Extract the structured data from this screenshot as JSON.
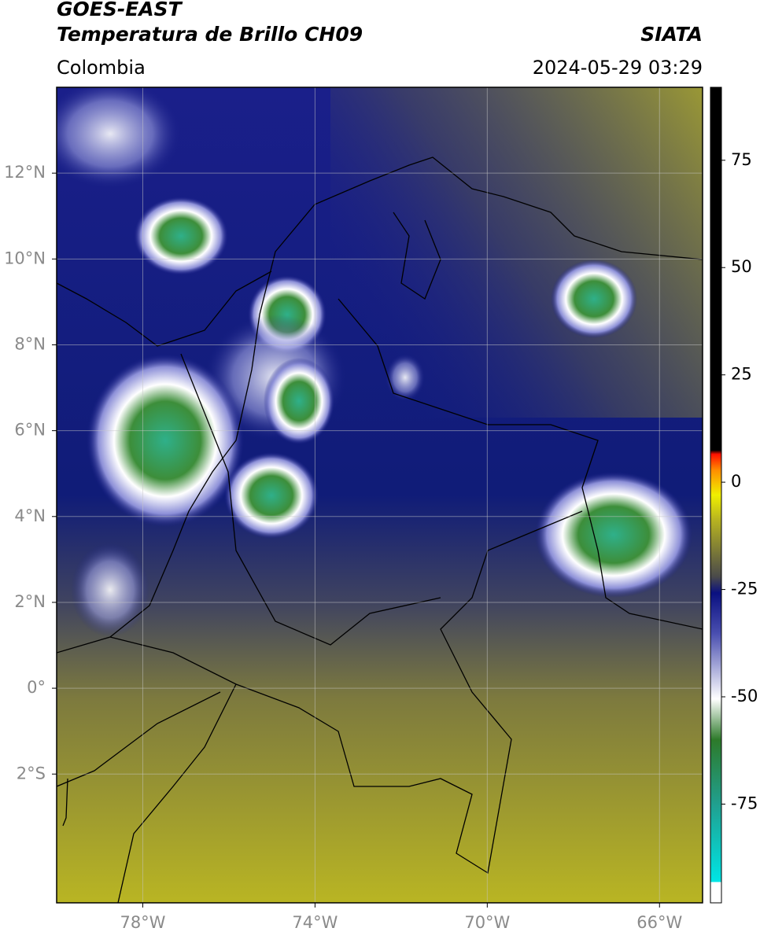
{
  "header": {
    "satellite": "GOES-EAST",
    "product": "Temperatura de Brillo CH09",
    "agency": "SIATA",
    "region": "Colombia",
    "datetime": "2024-05-29 03:29"
  },
  "map": {
    "xlim": [
      -80,
      -65
    ],
    "ylim": [
      -5,
      14
    ],
    "xticks": [
      {
        "value": -78,
        "label": "78°W"
      },
      {
        "value": -74,
        "label": "74°W"
      },
      {
        "value": -70,
        "label": "70°W"
      },
      {
        "value": -66,
        "label": "66°W"
      }
    ],
    "yticks": [
      {
        "value": 12,
        "label": "12°N"
      },
      {
        "value": 10,
        "label": "10°N"
      },
      {
        "value": 8,
        "label": "8°N"
      },
      {
        "value": 6,
        "label": "6°N"
      },
      {
        "value": 4,
        "label": "4°N"
      },
      {
        "value": 2,
        "label": "2°N"
      },
      {
        "value": 0,
        "label": "0°"
      },
      {
        "value": -2,
        "label": "2°S"
      }
    ]
  },
  "colorbar": {
    "lim": [
      -98,
      92
    ],
    "ticks": [
      75,
      50,
      25,
      0,
      -25,
      -50,
      -75
    ]
  }
}
